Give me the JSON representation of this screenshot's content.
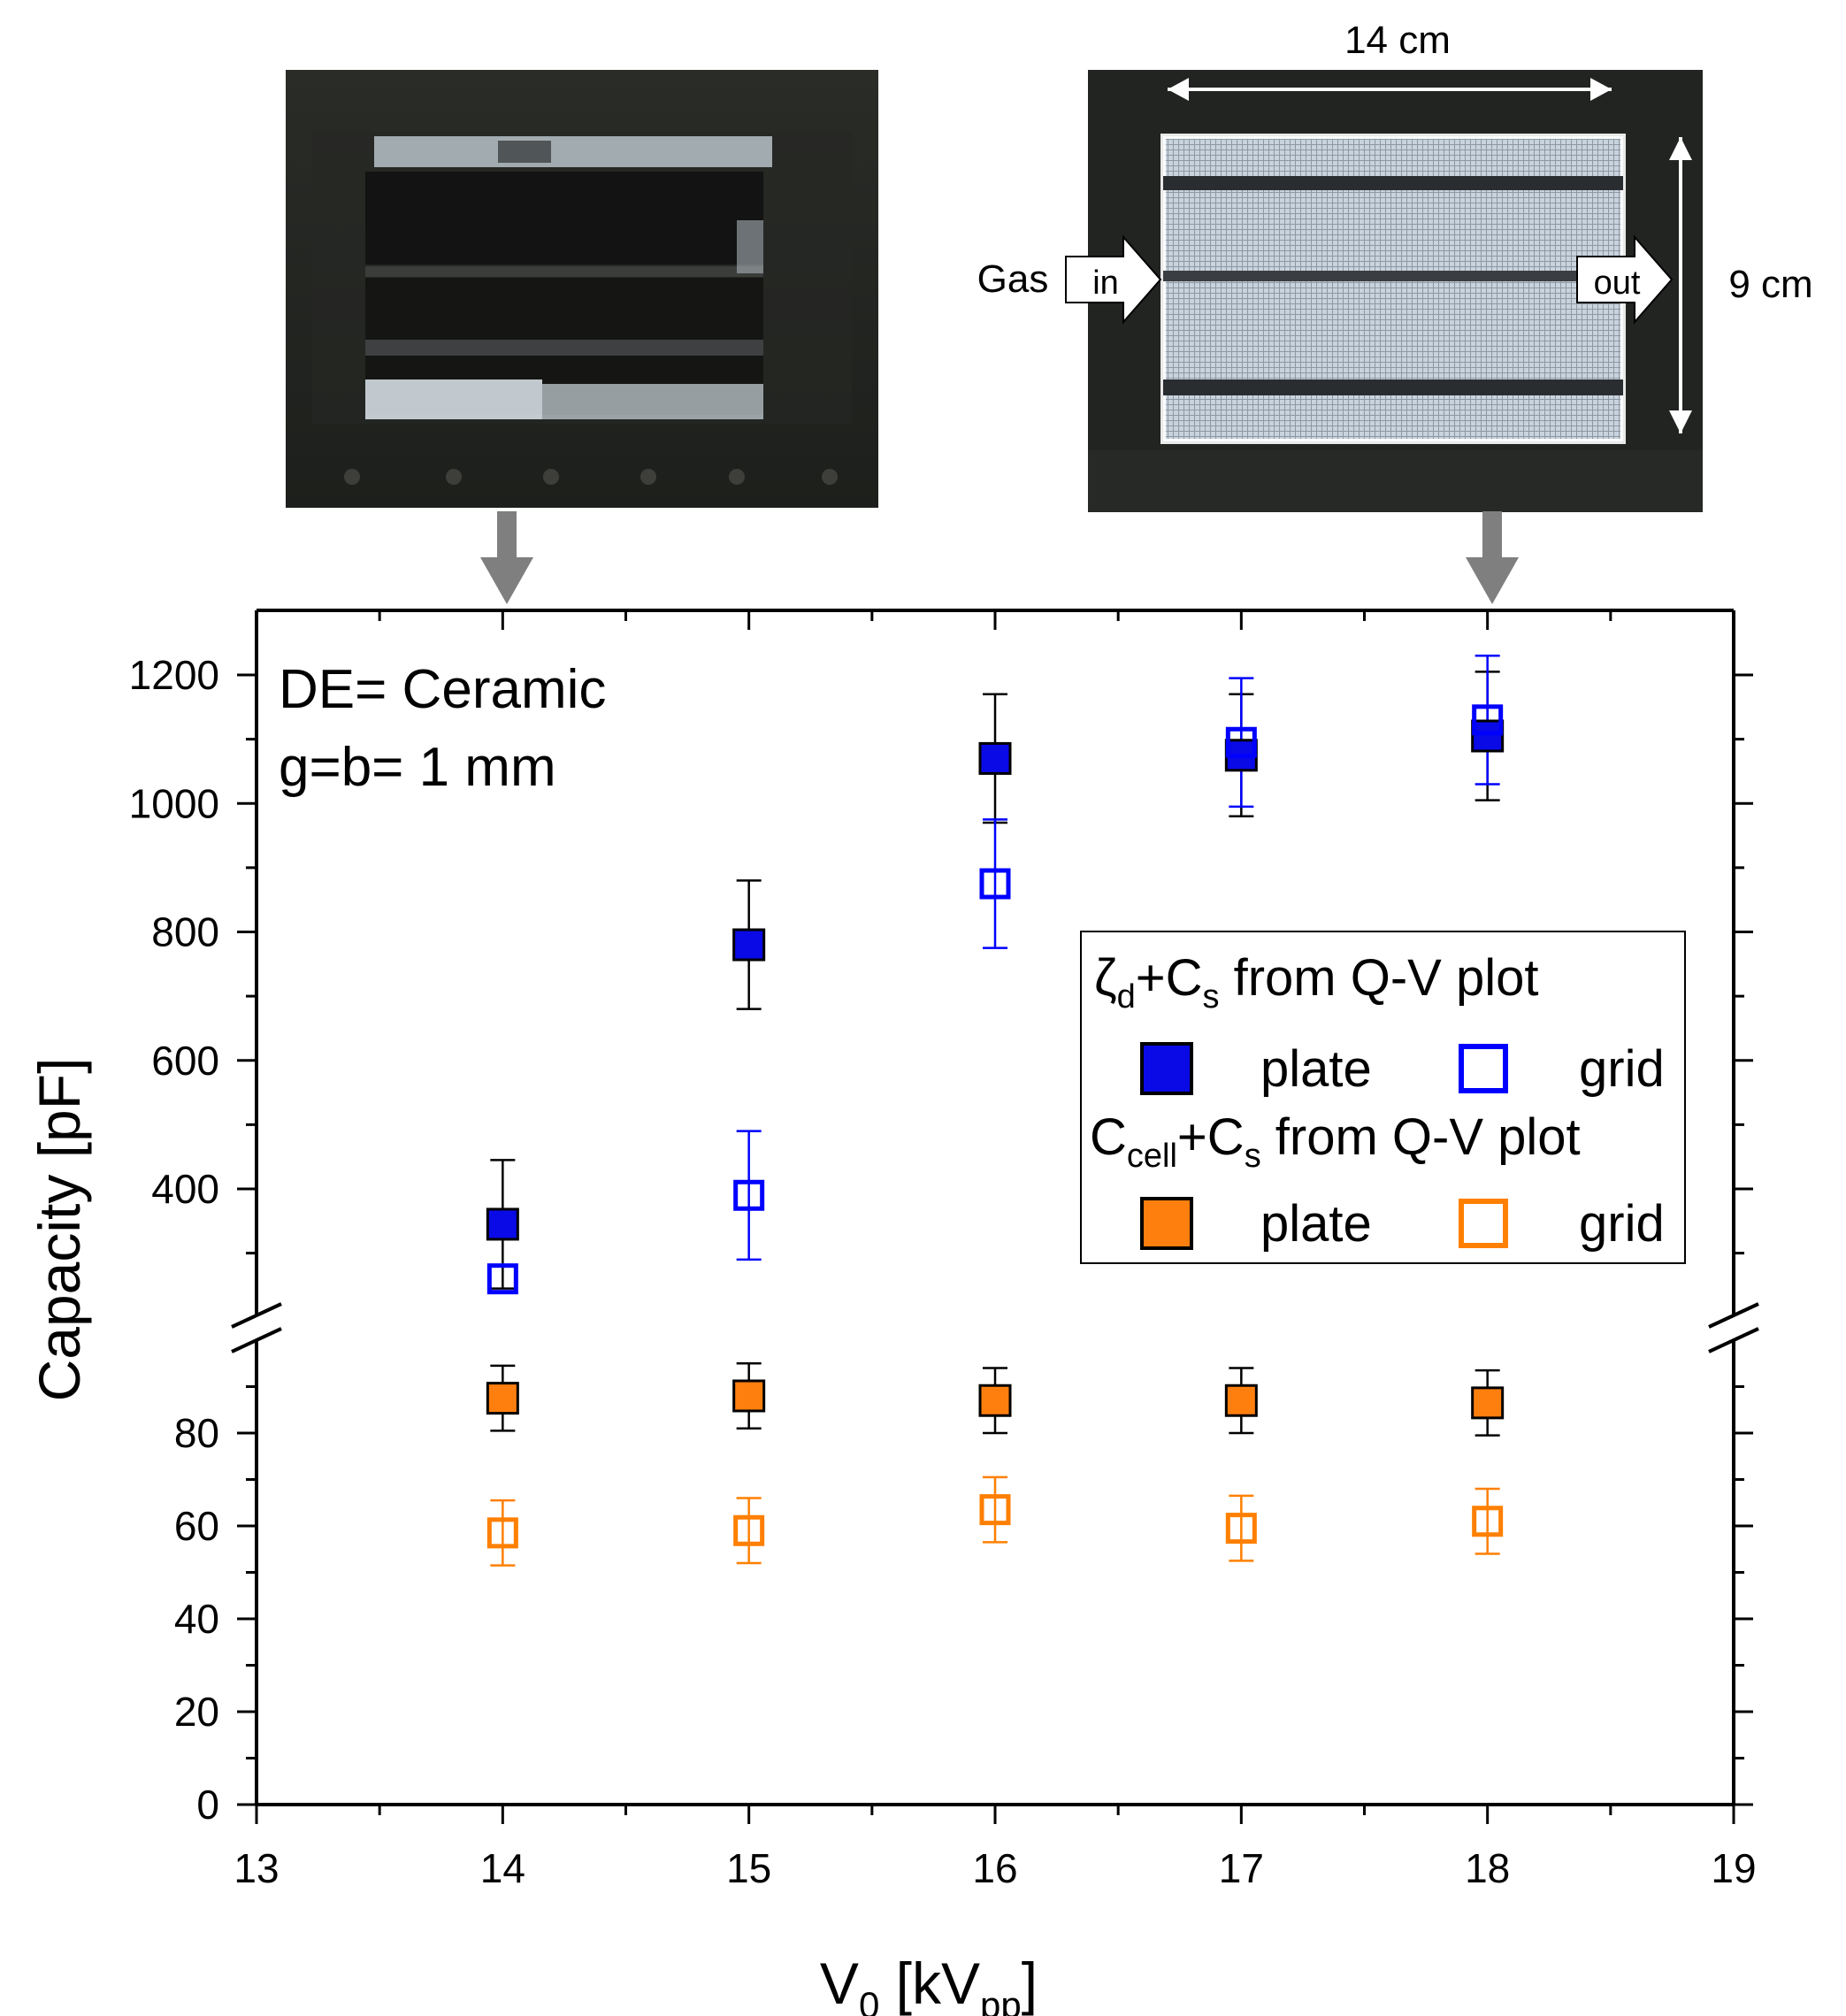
{
  "photos": {
    "left": {
      "description_hidden": true
    },
    "right": {
      "width_label": "14 cm",
      "height_label": "9 cm",
      "gas_label": "Gas",
      "in_label": "in",
      "out_label": "out"
    }
  },
  "chart_data": {
    "type": "scatter",
    "xlabel_main": "V",
    "xlabel_sub": "0",
    "xlabel_mid": " [kV",
    "xlabel_sub2": "pp",
    "xlabel_end": "]",
    "ylabel": "Capacity [pF]",
    "xlim": [
      13,
      19
    ],
    "ylim_upper": [
      200,
      1300
    ],
    "ylim_lower": [
      0,
      95
    ],
    "x_ticks": [
      "13",
      "14",
      "15",
      "16",
      "17",
      "18",
      "19"
    ],
    "y_ticks_upper": [
      "400",
      "600",
      "800",
      "1000",
      "1200"
    ],
    "y_ticks_lower": [
      "0",
      "20",
      "40",
      "60",
      "80"
    ],
    "annotation": [
      "DE= Ceramic",
      "g=b= 1 mm"
    ],
    "colors": {
      "blue": "#0000ff",
      "blue_fill": "#0a0ae6",
      "orange": "#ff7f00",
      "orange_fill": "#ff7f0e",
      "error_black": "#000000"
    },
    "legend": {
      "group1_prefix": "ζ",
      "group1_sub": "d",
      "group1_mid": "+C",
      "group1_sub2": "s",
      "group1_suffix": " from Q-V plot",
      "group2_prefix": "C",
      "group2_sub": "cell",
      "group2_mid": "+C",
      "group2_sub2": "s",
      "group2_suffix": " from Q-V plot",
      "plate": "plate",
      "grid": "grid"
    },
    "series": [
      {
        "name": "ζd+Cs plate",
        "axis": "upper",
        "marker": "filled",
        "color": "blue",
        "x": [
          14,
          15,
          16,
          17,
          18
        ],
        "y": [
          345,
          780,
          1070,
          1075,
          1105
        ],
        "err": [
          100,
          100,
          100,
          95,
          100
        ]
      },
      {
        "name": "ζd+Cs grid",
        "axis": "upper",
        "marker": "open",
        "color": "blue",
        "x": [
          14,
          15,
          16,
          17,
          18
        ],
        "y": [
          260,
          390,
          875,
          1095,
          1130
        ],
        "err": [
          0,
          100,
          100,
          100,
          100
        ]
      },
      {
        "name": "Ccell+Cs plate",
        "axis": "lower",
        "marker": "filled",
        "color": "orange",
        "x": [
          14,
          15,
          16,
          17,
          18
        ],
        "y": [
          87.5,
          88,
          87,
          87,
          86.5
        ],
        "err": [
          7,
          7,
          7,
          7,
          7
        ]
      },
      {
        "name": "Ccell+Cs grid",
        "axis": "lower",
        "marker": "open",
        "color": "orange",
        "x": [
          14,
          15,
          16,
          17,
          18
        ],
        "y": [
          58.5,
          59,
          63.5,
          59.5,
          61
        ],
        "err": [
          7,
          7,
          7,
          7,
          7
        ]
      }
    ]
  }
}
